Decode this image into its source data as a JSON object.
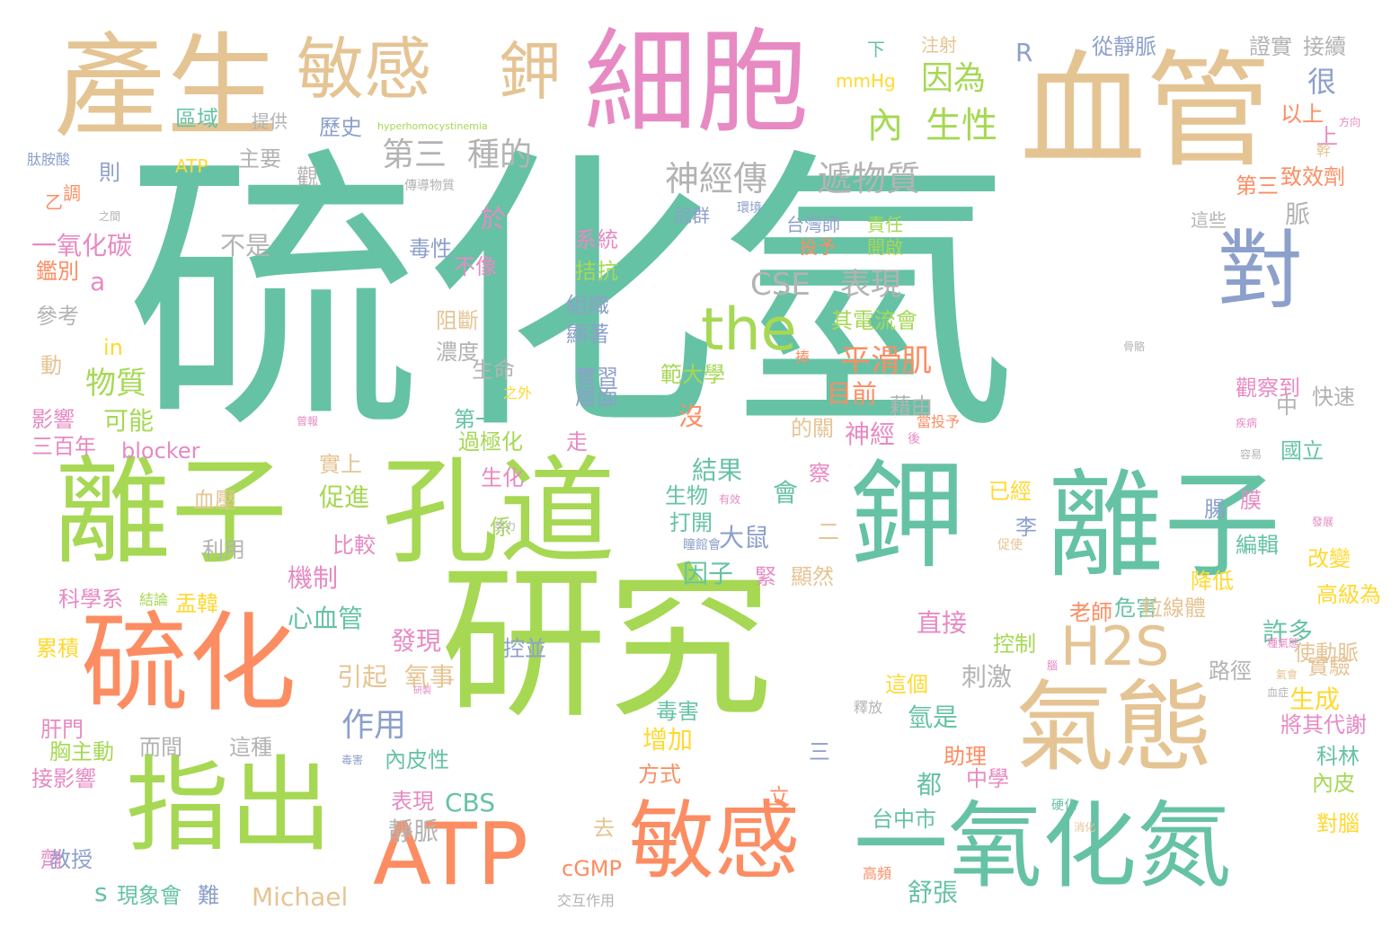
{
  "palette": {
    "teal": "#66c2a5",
    "orange": "#fc8d62",
    "periwinkle": "#8da0cb",
    "pink": "#e78ac3",
    "lime": "#a6d854",
    "yellow": "#ffd92f",
    "tan": "#e5c494",
    "gray": "#b3b3b3"
  },
  "words": [
    {
      "text": "硫化氫",
      "color": "teal"
    },
    {
      "text": "研究",
      "color": "lime"
    },
    {
      "text": "血管",
      "color": "tan"
    },
    {
      "text": "離子",
      "color": "lime"
    },
    {
      "text": "孔道",
      "color": "lime"
    },
    {
      "text": "離子",
      "color": "teal"
    },
    {
      "text": "鉀",
      "color": "teal"
    },
    {
      "text": "產生",
      "color": "tan"
    },
    {
      "text": "細胞",
      "color": "pink"
    },
    {
      "text": "硫化",
      "color": "orange"
    },
    {
      "text": "指出",
      "color": "lime"
    },
    {
      "text": "氣態",
      "color": "tan"
    },
    {
      "text": "一氧化氮",
      "color": "teal"
    },
    {
      "text": "敏感",
      "color": "tan"
    },
    {
      "text": "敏感",
      "color": "orange"
    },
    {
      "text": "ATP",
      "color": "orange"
    },
    {
      "text": "對",
      "color": "periwinkle"
    },
    {
      "text": "鉀",
      "color": "tan"
    },
    {
      "text": "the",
      "color": "lime"
    },
    {
      "text": "H2S",
      "color": "tan"
    },
    {
      "text": "內",
      "color": "lime"
    },
    {
      "text": "生性",
      "color": "lime"
    },
    {
      "text": "神經傳",
      "color": "gray"
    },
    {
      "text": "遞物質",
      "color": "gray"
    },
    {
      "text": "第三",
      "color": "gray"
    },
    {
      "text": "種的",
      "color": "gray"
    },
    {
      "text": "因為",
      "color": "lime"
    },
    {
      "text": "CSE",
      "color": "gray"
    },
    {
      "text": "表現",
      "color": "gray"
    },
    {
      "text": "平滑肌",
      "color": "orange"
    },
    {
      "text": "一氧化碳",
      "color": "pink"
    },
    {
      "text": "物質",
      "color": "lime"
    },
    {
      "text": "不是",
      "color": "gray"
    },
    {
      "text": "於",
      "color": "pink"
    },
    {
      "text": "毒性",
      "color": "periwinkle"
    },
    {
      "text": "不像",
      "color": "pink"
    },
    {
      "text": "系統",
      "color": "pink"
    },
    {
      "text": "拮抗",
      "color": "lime"
    },
    {
      "text": "組織",
      "color": "periwinkle"
    },
    {
      "text": "顯著",
      "color": "periwinkle"
    },
    {
      "text": "實習",
      "color": "periwinkle"
    },
    {
      "text": "層面",
      "color": "periwinkle"
    },
    {
      "text": "目前",
      "color": "orange"
    },
    {
      "text": "神經",
      "color": "pink"
    },
    {
      "text": "沒",
      "color": "orange"
    },
    {
      "text": "第一",
      "color": "teal"
    },
    {
      "text": "可能",
      "color": "lime"
    },
    {
      "text": "blocker",
      "color": "pink"
    },
    {
      "text": "三百年",
      "color": "pink"
    },
    {
      "text": "影響",
      "color": "pink"
    },
    {
      "text": "過極化",
      "color": "lime"
    },
    {
      "text": "生化",
      "color": "pink"
    },
    {
      "text": "實上",
      "color": "tan"
    },
    {
      "text": "血壓",
      "color": "tan"
    },
    {
      "text": "促進",
      "color": "lime"
    },
    {
      "text": "結果",
      "color": "teal"
    },
    {
      "text": "會",
      "color": "teal"
    },
    {
      "text": "大鼠",
      "color": "periwinkle"
    },
    {
      "text": "機制",
      "color": "pink"
    },
    {
      "text": "因子",
      "color": "teal"
    },
    {
      "text": "心血管",
      "color": "teal"
    },
    {
      "text": "比較",
      "color": "pink"
    },
    {
      "text": "利用",
      "color": "gray"
    },
    {
      "text": "打開",
      "color": "teal"
    },
    {
      "text": "生物",
      "color": "teal"
    },
    {
      "text": "發現",
      "color": "pink"
    },
    {
      "text": "引起",
      "color": "tan"
    },
    {
      "text": "氧事",
      "color": "tan"
    },
    {
      "text": "控並",
      "color": "periwinkle"
    },
    {
      "text": "作用",
      "color": "periwinkle"
    },
    {
      "text": "刺激",
      "color": "gray"
    },
    {
      "text": "直接",
      "color": "pink"
    },
    {
      "text": "增加",
      "color": "yellow"
    },
    {
      "text": "CBS",
      "color": "teal"
    },
    {
      "text": "Michael",
      "color": "tan"
    },
    {
      "text": "舒張",
      "color": "teal"
    },
    {
      "text": "都",
      "color": "teal"
    },
    {
      "text": "氫是",
      "color": "teal"
    },
    {
      "text": "靜脈",
      "color": "gray"
    },
    {
      "text": "表現",
      "color": "pink"
    },
    {
      "text": "內皮性",
      "color": "teal"
    },
    {
      "text": "而間",
      "color": "gray"
    },
    {
      "text": "這種",
      "color": "gray"
    },
    {
      "text": "胸主動",
      "color": "lime"
    },
    {
      "text": "肝門",
      "color": "pink"
    },
    {
      "text": "接影響",
      "color": "pink"
    },
    {
      "text": "教授",
      "color": "periwinkle"
    },
    {
      "text": "s",
      "color": "teal"
    },
    {
      "text": "cGMP",
      "color": "orange"
    },
    {
      "text": "現象會",
      "color": "teal"
    },
    {
      "text": "難",
      "color": "periwinkle"
    },
    {
      "text": "交互作用",
      "color": "gray"
    },
    {
      "text": "去",
      "color": "tan"
    },
    {
      "text": "台中市",
      "color": "teal"
    },
    {
      "text": "助理",
      "color": "orange"
    },
    {
      "text": "中學",
      "color": "pink"
    },
    {
      "text": "方式",
      "color": "orange"
    },
    {
      "text": "毒害",
      "color": "teal"
    },
    {
      "text": "三",
      "color": "periwinkle"
    },
    {
      "text": "立",
      "color": "orange"
    },
    {
      "text": "這個",
      "color": "yellow"
    },
    {
      "text": "許多",
      "color": "teal"
    },
    {
      "text": "危害",
      "color": "teal"
    },
    {
      "text": "控制",
      "color": "lime"
    },
    {
      "text": "老師",
      "color": "orange"
    },
    {
      "text": "粒線體",
      "color": "tan"
    },
    {
      "text": "降低",
      "color": "yellow"
    },
    {
      "text": "實驗",
      "color": "tan"
    },
    {
      "text": "使動脈",
      "color": "tan"
    },
    {
      "text": "高級為",
      "color": "yellow"
    },
    {
      "text": "改變",
      "color": "yellow"
    },
    {
      "text": "編輯",
      "color": "teal"
    },
    {
      "text": "路徑",
      "color": "gray"
    },
    {
      "text": "生成",
      "color": "yellow"
    },
    {
      "text": "將其代謝",
      "color": "pink"
    },
    {
      "text": "科林",
      "color": "teal"
    },
    {
      "text": "內皮",
      "color": "lime"
    },
    {
      "text": "對腦",
      "color": "yellow"
    },
    {
      "text": "膜",
      "color": "pink"
    },
    {
      "text": "腸",
      "color": "periwinkle"
    },
    {
      "text": "觀察到",
      "color": "pink"
    },
    {
      "text": "快速",
      "color": "gray"
    },
    {
      "text": "國立",
      "color": "teal"
    },
    {
      "text": "中",
      "color": "gray"
    },
    {
      "text": "範大學",
      "color": "lime"
    },
    {
      "text": "其電流會",
      "color": "lime"
    },
    {
      "text": "阻斷",
      "color": "tan"
    },
    {
      "text": "濃度",
      "color": "gray"
    },
    {
      "text": "生命",
      "color": "gray"
    },
    {
      "text": "投予",
      "color": "orange"
    },
    {
      "text": "開啟",
      "color": "lime"
    },
    {
      "text": "責任",
      "color": "lime"
    },
    {
      "text": "台灣師",
      "color": "periwinkle"
    },
    {
      "text": "冠群",
      "color": "periwinkle"
    },
    {
      "text": "這些",
      "color": "gray"
    },
    {
      "text": "脈",
      "color": "gray"
    },
    {
      "text": "第三",
      "color": "orange"
    },
    {
      "text": "致效劑",
      "color": "orange"
    },
    {
      "text": "上",
      "color": "pink"
    },
    {
      "text": "幹",
      "color": "tan"
    },
    {
      "text": "以上",
      "color": "orange"
    },
    {
      "text": "很",
      "color": "periwinkle"
    },
    {
      "text": "證實",
      "color": "gray"
    },
    {
      "text": "接續",
      "color": "gray"
    },
    {
      "text": "從靜脈",
      "color": "periwinkle"
    },
    {
      "text": "注射",
      "color": "tan"
    },
    {
      "text": "下",
      "color": "teal"
    },
    {
      "text": "R",
      "color": "periwinkle"
    },
    {
      "text": "mmHg",
      "color": "yellow"
    },
    {
      "text": "hyperhomocystinemia",
      "color": "lime"
    },
    {
      "text": "歷史",
      "color": "periwinkle"
    },
    {
      "text": "提供",
      "color": "gray"
    },
    {
      "text": "區域",
      "color": "teal"
    },
    {
      "text": "主要",
      "color": "gray"
    },
    {
      "text": "ATP",
      "color": "yellow"
    },
    {
      "text": "則",
      "color": "periwinkle"
    },
    {
      "text": "觀",
      "color": "gray"
    },
    {
      "text": "傳導物質",
      "color": "gray"
    },
    {
      "text": "肽胺酸",
      "color": "periwinkle"
    },
    {
      "text": "乙",
      "color": "orange"
    },
    {
      "text": "調",
      "color": "orange"
    },
    {
      "text": "鑑別",
      "color": "orange"
    },
    {
      "text": "a",
      "color": "pink"
    },
    {
      "text": "參考",
      "color": "gray"
    },
    {
      "text": "in",
      "color": "yellow"
    },
    {
      "text": "動",
      "color": "tan"
    },
    {
      "text": "科學系",
      "color": "pink"
    },
    {
      "text": "結論",
      "color": "lime"
    },
    {
      "text": "盂韓",
      "color": "yellow"
    },
    {
      "text": "累積",
      "color": "yellow"
    },
    {
      "text": "係",
      "color": "lime"
    },
    {
      "text": "努力",
      "color": "gray"
    },
    {
      "text": "瞳館會",
      "color": "periwinkle"
    },
    {
      "text": "二",
      "color": "tan"
    },
    {
      "text": "緊",
      "color": "pink"
    },
    {
      "text": "顯然",
      "color": "tan"
    },
    {
      "text": "藉由",
      "color": "gray"
    },
    {
      "text": "的關",
      "color": "tan"
    },
    {
      "text": "當投予",
      "color": "orange"
    },
    {
      "text": "走",
      "color": "pink"
    },
    {
      "text": "察",
      "color": "pink"
    },
    {
      "text": "釋放",
      "color": "gray"
    },
    {
      "text": "李",
      "color": "periwinkle"
    },
    {
      "text": "促使",
      "color": "tan"
    },
    {
      "text": "已經",
      "color": "yellow"
    },
    {
      "text": "高頻",
      "color": "orange"
    },
    {
      "text": "硬化",
      "color": "teal"
    },
    {
      "text": "血症",
      "color": "gray"
    },
    {
      "text": "疾病",
      "color": "pink"
    },
    {
      "text": "捧",
      "color": "orange"
    },
    {
      "text": "後",
      "color": "pink"
    },
    {
      "text": "之外",
      "color": "yellow"
    },
    {
      "text": "之間",
      "color": "gray"
    },
    {
      "text": "環境",
      "color": "periwinkle"
    },
    {
      "text": "方向",
      "color": "pink"
    },
    {
      "text": "容易",
      "color": "gray"
    },
    {
      "text": "種氣態",
      "color": "pink"
    },
    {
      "text": "氣會",
      "color": "tan"
    },
    {
      "text": "劑",
      "color": "pink"
    },
    {
      "text": "毒害",
      "color": "periwinkle"
    },
    {
      "text": "發展",
      "color": "pink"
    },
    {
      "text": "骨骼",
      "color": "gray"
    },
    {
      "text": "腦",
      "color": "pink"
    },
    {
      "text": "曾報",
      "color": "pink"
    },
    {
      "text": "研製",
      "color": "pink"
    },
    {
      "text": "有效",
      "color": "pink"
    },
    {
      "text": "消化",
      "color": "tan"
    }
  ]
}
